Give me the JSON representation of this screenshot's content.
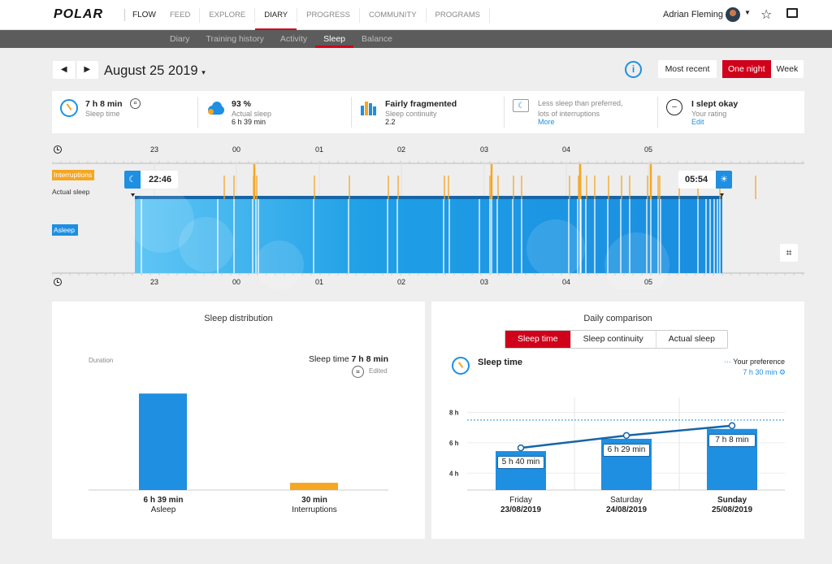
{
  "brand": {
    "logo": "POLAR",
    "product": "FLOW"
  },
  "nav": {
    "items": [
      {
        "label": "FEED",
        "active": false
      },
      {
        "label": "EXPLORE",
        "active": false
      },
      {
        "label": "DIARY",
        "active": true
      },
      {
        "label": "PROGRESS",
        "active": false
      },
      {
        "label": "COMMUNITY",
        "active": false
      },
      {
        "label": "PROGRAMS",
        "active": false
      }
    ]
  },
  "user": {
    "name": "Adrian Fleming"
  },
  "subnav": {
    "items": [
      {
        "label": "Diary",
        "active": false
      },
      {
        "label": "Training history",
        "active": false
      },
      {
        "label": "Activity",
        "active": false
      },
      {
        "label": "Sleep",
        "active": true
      },
      {
        "label": "Balance",
        "active": false
      }
    ]
  },
  "header": {
    "date": "August 25 2019",
    "mostrecent": "Most recent",
    "onenight": "One night",
    "week": "Week"
  },
  "summary": [
    {
      "v1": "7 h 8 min",
      "v2": "Sleep time",
      "v3": "",
      "icon": "sleep-time-icon"
    },
    {
      "v1": "93 %",
      "v2": "Actual sleep",
      "v3": "6 h 39 min",
      "icon": "actual-sleep-icon"
    },
    {
      "v1": "Fairly fragmented",
      "v2": "Sleep continuity",
      "v3": "2.2",
      "icon": "continuity-icon"
    },
    {
      "v1": "Less sleep than preferred,",
      "v2": "lots of interruptions",
      "v3": "More",
      "icon": "sleep-feedback-icon",
      "light": true
    },
    {
      "v1": "I slept okay",
      "v2": "Your rating",
      "v3": "Edit",
      "icon": "rating-face-icon"
    }
  ],
  "hypnogram": {
    "hours": [
      "23",
      "00",
      "01",
      "02",
      "03",
      "04",
      "05"
    ],
    "interruptions_label": "Interruptions",
    "actual_sleep_label": "Actual sleep",
    "asleep_label": "Asleep",
    "sleep_start": "22:46",
    "sleep_end": "05:54"
  },
  "distribution": {
    "title": "Sleep distribution",
    "y_label": "Duration",
    "total_label": "Sleep time",
    "total_value": "7 h 8 min",
    "edited": "Edited",
    "bars": [
      {
        "value": "6 h 39 min",
        "label": "Asleep",
        "minutes": 399,
        "color": "#1e8fe1"
      },
      {
        "value": "30 min",
        "label": "Interruptions",
        "minutes": 30,
        "color": "#f5a623"
      }
    ]
  },
  "comparison": {
    "title": "Daily comparison",
    "tabs": [
      {
        "label": "Sleep time",
        "active": true
      },
      {
        "label": "Sleep continuity",
        "active": false
      },
      {
        "label": "Actual sleep",
        "active": false
      }
    ],
    "subtitle": "Sleep time",
    "pref_label": "Your preference",
    "pref_value": "7 h 30 min",
    "y_ticks": [
      "8 h",
      "6 h",
      "4 h"
    ],
    "chart_data": {
      "type": "bar",
      "categories": [
        "Friday 23/08/2019",
        "Saturday 24/08/2019",
        "Sunday 25/08/2019"
      ],
      "days": [
        "Friday",
        "Saturday",
        "Sunday"
      ],
      "dates": [
        "23/08/2019",
        "24/08/2019",
        "25/08/2019"
      ],
      "values_hours": [
        5.67,
        6.48,
        7.13
      ],
      "value_labels": [
        "5 h 40 min",
        "6 h 29 min",
        "7 h 8 min"
      ],
      "preference_hours": 7.5,
      "ylim": [
        3,
        8
      ]
    }
  }
}
